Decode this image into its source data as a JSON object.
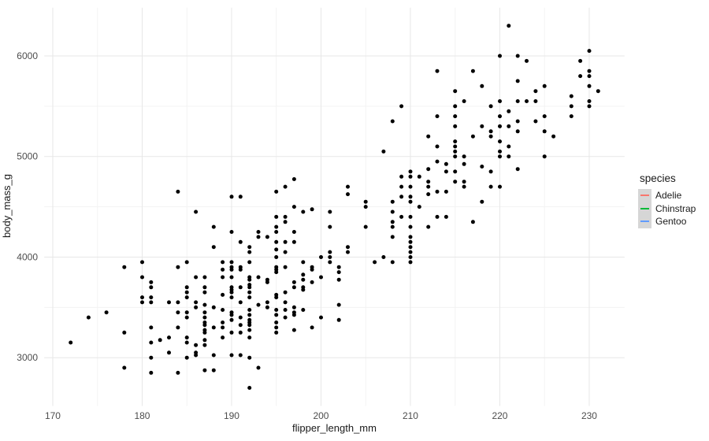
{
  "chart_data": {
    "type": "scatter",
    "title": "",
    "xlabel": "flipper_length_mm",
    "ylabel": "body_mass_g",
    "xlim": [
      169.05,
      233.95
    ],
    "ylim": [
      2520,
      6480
    ],
    "x_ticks": [
      170,
      180,
      190,
      200,
      210,
      220,
      230
    ],
    "y_ticks": [
      3000,
      4000,
      5000,
      6000
    ],
    "x_minor_ticks": [
      175,
      185,
      195,
      205,
      215,
      225
    ],
    "y_minor_ticks": [
      3500,
      4500,
      5500
    ],
    "grid": true,
    "point_color": "#000000",
    "colors": {
      "grid_major": "#e7e7e7",
      "grid_minor": "#f3f3f3",
      "tick_label": "#4d4d4d",
      "legend_key_bg": "#d6d6d6"
    },
    "legend": {
      "position": "right",
      "title": "species",
      "items": [
        {
          "label": "Adelie",
          "color": "#F8766D"
        },
        {
          "label": "Chinstrap",
          "color": "#00BA38"
        },
        {
          "label": "Gentoo",
          "color": "#619CFF"
        }
      ]
    },
    "points": [
      [
        221,
        6300
      ],
      [
        230,
        6050
      ],
      [
        220,
        6000
      ],
      [
        222,
        6000
      ],
      [
        223,
        5950
      ],
      [
        229,
        5950
      ],
      [
        213,
        5850
      ],
      [
        217,
        5850
      ],
      [
        230,
        5850
      ],
      [
        229,
        5800
      ],
      [
        230,
        5800
      ],
      [
        222,
        5750
      ],
      [
        218,
        5700
      ],
      [
        225,
        5700
      ],
      [
        230,
        5700
      ],
      [
        215,
        5650
      ],
      [
        224,
        5650
      ],
      [
        231,
        5650
      ],
      [
        228,
        5600
      ],
      [
        216,
        5550
      ],
      [
        220,
        5550
      ],
      [
        222,
        5550
      ],
      [
        223,
        5550
      ],
      [
        224,
        5550
      ],
      [
        230,
        5550
      ],
      [
        209,
        5500
      ],
      [
        215,
        5500
      ],
      [
        219,
        5500
      ],
      [
        228,
        5500
      ],
      [
        230,
        5500
      ],
      [
        221,
        5450
      ],
      [
        213,
        5400
      ],
      [
        215,
        5400
      ],
      [
        220,
        5400
      ],
      [
        225,
        5400
      ],
      [
        228,
        5400
      ],
      [
        208,
        5350
      ],
      [
        222,
        5350
      ],
      [
        224,
        5350
      ],
      [
        215,
        5300
      ],
      [
        218,
        5300
      ],
      [
        220,
        5300
      ],
      [
        221,
        5300
      ],
      [
        219,
        5250
      ],
      [
        222,
        5250
      ],
      [
        225,
        5250
      ],
      [
        212,
        5200
      ],
      [
        217,
        5200
      ],
      [
        219,
        5200
      ],
      [
        226,
        5200
      ],
      [
        215,
        5150
      ],
      [
        220,
        5150
      ],
      [
        213,
        5100
      ],
      [
        215,
        5100
      ],
      [
        221,
        5100
      ],
      [
        207,
        5050
      ],
      [
        215,
        5050
      ],
      [
        220,
        5050
      ],
      [
        215,
        5000
      ],
      [
        216,
        5000
      ],
      [
        220,
        5000
      ],
      [
        221,
        5000
      ],
      [
        225,
        5000
      ],
      [
        213,
        4950
      ],
      [
        214,
        4925
      ],
      [
        216,
        4925
      ],
      [
        218,
        4900
      ],
      [
        212,
        4875
      ],
      [
        222,
        4875
      ],
      [
        210,
        4850
      ],
      [
        214,
        4850
      ],
      [
        215,
        4850
      ],
      [
        219,
        4850
      ],
      [
        209,
        4800
      ],
      [
        210,
        4800
      ],
      [
        211,
        4800
      ],
      [
        197,
        4775
      ],
      [
        212,
        4750
      ],
      [
        215,
        4750
      ],
      [
        216,
        4750
      ],
      [
        196,
        4700
      ],
      [
        203,
        4700
      ],
      [
        209,
        4700
      ],
      [
        210,
        4700
      ],
      [
        212,
        4700
      ],
      [
        216,
        4700
      ],
      [
        219,
        4700
      ],
      [
        220,
        4700
      ],
      [
        184,
        4650
      ],
      [
        195,
        4650
      ],
      [
        213,
        4650
      ],
      [
        214,
        4650
      ],
      [
        203,
        4625
      ],
      [
        212,
        4625
      ],
      [
        190,
        4600
      ],
      [
        191,
        4600
      ],
      [
        209,
        4600
      ],
      [
        210,
        4600
      ],
      [
        205,
        4550
      ],
      [
        208,
        4550
      ],
      [
        210,
        4550
      ],
      [
        218,
        4550
      ],
      [
        197,
        4500
      ],
      [
        205,
        4500
      ],
      [
        211,
        4500
      ],
      [
        199,
        4475
      ],
      [
        186,
        4450
      ],
      [
        198,
        4450
      ],
      [
        201,
        4450
      ],
      [
        208,
        4450
      ],
      [
        195,
        4400
      ],
      [
        196,
        4400
      ],
      [
        209,
        4400
      ],
      [
        210,
        4400
      ],
      [
        213,
        4400
      ],
      [
        214,
        4400
      ],
      [
        196,
        4350
      ],
      [
        208,
        4350
      ],
      [
        217,
        4350
      ],
      [
        188,
        4300
      ],
      [
        195,
        4300
      ],
      [
        201,
        4300
      ],
      [
        205,
        4300
      ],
      [
        208,
        4300
      ],
      [
        210,
        4300
      ],
      [
        212,
        4300
      ],
      [
        190,
        4250
      ],
      [
        193,
        4250
      ],
      [
        195,
        4250
      ],
      [
        197,
        4250
      ],
      [
        193,
        4200
      ],
      [
        194,
        4200
      ],
      [
        208,
        4200
      ],
      [
        210,
        4200
      ],
      [
        191,
        4150
      ],
      [
        195,
        4150
      ],
      [
        196,
        4150
      ],
      [
        197,
        4150
      ],
      [
        210,
        4150
      ],
      [
        188,
        4100
      ],
      [
        192,
        4100
      ],
      [
        203,
        4100
      ],
      [
        210,
        4100
      ],
      [
        195,
        4075
      ],
      [
        192,
        4050
      ],
      [
        196,
        4050
      ],
      [
        201,
        4050
      ],
      [
        203,
        4050
      ],
      [
        210,
        4050
      ],
      [
        195,
        4000
      ],
      [
        200,
        4000
      ],
      [
        201,
        4000
      ],
      [
        207,
        4000
      ],
      [
        210,
        4000
      ],
      [
        180,
        3950
      ],
      [
        185,
        3950
      ],
      [
        189,
        3950
      ],
      [
        190,
        3950
      ],
      [
        192,
        3950
      ],
      [
        198,
        3950
      ],
      [
        201,
        3950
      ],
      [
        206,
        3950
      ],
      [
        208,
        3950
      ],
      [
        210,
        3950
      ],
      [
        178,
        3900
      ],
      [
        184,
        3900
      ],
      [
        190,
        3900
      ],
      [
        191,
        3900
      ],
      [
        195,
        3900
      ],
      [
        196,
        3900
      ],
      [
        199,
        3900
      ],
      [
        202,
        3900
      ],
      [
        189,
        3875
      ],
      [
        190,
        3875
      ],
      [
        191,
        3875
      ],
      [
        195,
        3875
      ],
      [
        199,
        3875
      ],
      [
        195,
        3850
      ],
      [
        202,
        3850
      ],
      [
        198,
        3825
      ],
      [
        180,
        3800
      ],
      [
        186,
        3800
      ],
      [
        187,
        3800
      ],
      [
        189,
        3800
      ],
      [
        190,
        3800
      ],
      [
        192,
        3800
      ],
      [
        193,
        3800
      ],
      [
        200,
        3800
      ],
      [
        192,
        3775
      ],
      [
        194,
        3775
      ],
      [
        198,
        3775
      ],
      [
        202,
        3775
      ],
      [
        181,
        3750
      ],
      [
        194,
        3750
      ],
      [
        197,
        3750
      ],
      [
        199,
        3750
      ],
      [
        192,
        3725
      ],
      [
        181,
        3700
      ],
      [
        185,
        3700
      ],
      [
        187,
        3700
      ],
      [
        190,
        3700
      ],
      [
        191,
        3700
      ],
      [
        192,
        3700
      ],
      [
        197,
        3700
      ],
      [
        198,
        3700
      ],
      [
        190,
        3675
      ],
      [
        198,
        3675
      ],
      [
        185,
        3650
      ],
      [
        187,
        3650
      ],
      [
        190,
        3650
      ],
      [
        192,
        3650
      ],
      [
        196,
        3650
      ],
      [
        189,
        3625
      ],
      [
        195,
        3625
      ],
      [
        180,
        3600
      ],
      [
        181,
        3600
      ],
      [
        185,
        3600
      ],
      [
        190,
        3600
      ],
      [
        192,
        3600
      ],
      [
        195,
        3600
      ],
      [
        180,
        3550
      ],
      [
        181,
        3550
      ],
      [
        183,
        3550
      ],
      [
        184,
        3550
      ],
      [
        186,
        3550
      ],
      [
        191,
        3550
      ],
      [
        194,
        3550
      ],
      [
        196,
        3550
      ],
      [
        187,
        3525
      ],
      [
        193,
        3525
      ],
      [
        202,
        3525
      ],
      [
        186,
        3500
      ],
      [
        188,
        3500
      ],
      [
        194,
        3500
      ],
      [
        197,
        3500
      ],
      [
        189,
        3475
      ],
      [
        192,
        3475
      ],
      [
        195,
        3475
      ],
      [
        196,
        3475
      ],
      [
        198,
        3475
      ],
      [
        176,
        3450
      ],
      [
        184,
        3450
      ],
      [
        185,
        3450
      ],
      [
        187,
        3450
      ],
      [
        190,
        3450
      ],
      [
        197,
        3450
      ],
      [
        190,
        3425
      ],
      [
        192,
        3425
      ],
      [
        195,
        3425
      ],
      [
        197,
        3425
      ],
      [
        174,
        3400
      ],
      [
        185,
        3400
      ],
      [
        187,
        3400
      ],
      [
        191,
        3400
      ],
      [
        196,
        3400
      ],
      [
        200,
        3400
      ],
      [
        190,
        3375
      ],
      [
        192,
        3375
      ],
      [
        202,
        3375
      ],
      [
        187,
        3350
      ],
      [
        189,
        3350
      ],
      [
        192,
        3350
      ],
      [
        195,
        3350
      ],
      [
        187,
        3325
      ],
      [
        191,
        3325
      ],
      [
        192,
        3325
      ],
      [
        181,
        3300
      ],
      [
        184,
        3300
      ],
      [
        188,
        3300
      ],
      [
        189,
        3300
      ],
      [
        195,
        3300
      ],
      [
        199,
        3300
      ],
      [
        187,
        3275
      ],
      [
        192,
        3275
      ],
      [
        197,
        3275
      ],
      [
        178,
        3250
      ],
      [
        187,
        3250
      ],
      [
        190,
        3250
      ],
      [
        191,
        3250
      ],
      [
        195,
        3250
      ],
      [
        183,
        3200
      ],
      [
        185,
        3200
      ],
      [
        189,
        3200
      ],
      [
        192,
        3200
      ],
      [
        182,
        3175
      ],
      [
        187,
        3175
      ],
      [
        172,
        3150
      ],
      [
        181,
        3150
      ],
      [
        185,
        3150
      ],
      [
        186,
        3125
      ],
      [
        187,
        3125
      ],
      [
        183,
        3050
      ],
      [
        186,
        3050
      ],
      [
        186,
        3025
      ],
      [
        188,
        3025
      ],
      [
        190,
        3025
      ],
      [
        191,
        3025
      ],
      [
        181,
        3000
      ],
      [
        185,
        3000
      ],
      [
        192,
        3000
      ],
      [
        178,
        2900
      ],
      [
        193,
        2900
      ],
      [
        187,
        2875
      ],
      [
        188,
        2875
      ],
      [
        181,
        2850
      ],
      [
        184,
        2850
      ],
      [
        192,
        2700
      ]
    ]
  }
}
